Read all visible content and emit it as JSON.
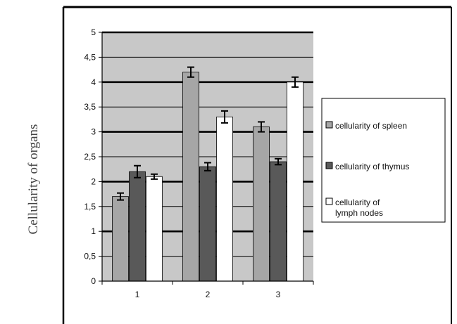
{
  "chart_data": {
    "type": "bar",
    "title": "",
    "ylabel": "Cellularity of organs",
    "xlabel": "",
    "categories": [
      "1",
      "2",
      "3"
    ],
    "ylim": [
      0,
      5
    ],
    "yticks": [
      "0",
      "0,5",
      "1",
      "1,5",
      "2",
      "2,5",
      "3",
      "3,5",
      "4",
      "4,5",
      "5"
    ],
    "grid": true,
    "legend_position": "right",
    "series": [
      {
        "name": "cellularity of spleen",
        "color": "#a6a6a6",
        "values": [
          1.7,
          4.2,
          3.1
        ],
        "errors": [
          0.07,
          0.1,
          0.1
        ]
      },
      {
        "name": "cellularity of thymus",
        "color": "#595959",
        "values": [
          2.2,
          2.3,
          2.4
        ],
        "errors": [
          0.12,
          0.08,
          0.06
        ]
      },
      {
        "name": "cellularity of lymph nodes",
        "color": "#ffffff",
        "values": [
          2.1,
          3.3,
          4.0
        ],
        "errors": [
          0.05,
          0.12,
          0.1
        ]
      }
    ],
    "legend_lines": [
      [
        "cellularity of spleen"
      ],
      [
        "cellularity of thymus"
      ],
      [
        "cellularity of",
        "lymph nodes"
      ]
    ]
  }
}
